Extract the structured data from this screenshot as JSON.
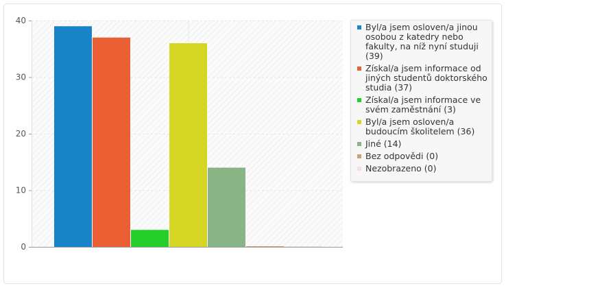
{
  "chart_data": {
    "type": "bar",
    "title": "",
    "xlabel": "",
    "ylabel": "",
    "ylim": [
      0,
      40
    ],
    "yticks": [
      0,
      10,
      20,
      30,
      40
    ],
    "grid": true,
    "legend_position": "right",
    "series": [
      {
        "label": "Byl/a jsem osloven/a jinou osobou z katedry nebo fakulty, na níž nyní studuji (39)",
        "value": 39,
        "color": "#1a84c9"
      },
      {
        "label": "Získal/a jsem informace od jiných studentů doktorského studia (37)",
        "value": 37,
        "color": "#eb5f35"
      },
      {
        "label": "Získal/a jsem informace ve svém zaměstnání (3)",
        "value": 3,
        "color": "#26cf2c"
      },
      {
        "label": "Byl/a jsem osloven/a budoucím školitelem (36)",
        "value": 36,
        "color": "#d5d523"
      },
      {
        "label": "Jiné (14)",
        "value": 14,
        "color": "#88b486"
      },
      {
        "label": "Bez odpovědi (0)",
        "value": 0,
        "color": "#c9a27a"
      },
      {
        "label": "Nezobrazeno (0)",
        "value": 0,
        "color": "#f7dfdd"
      }
    ]
  }
}
